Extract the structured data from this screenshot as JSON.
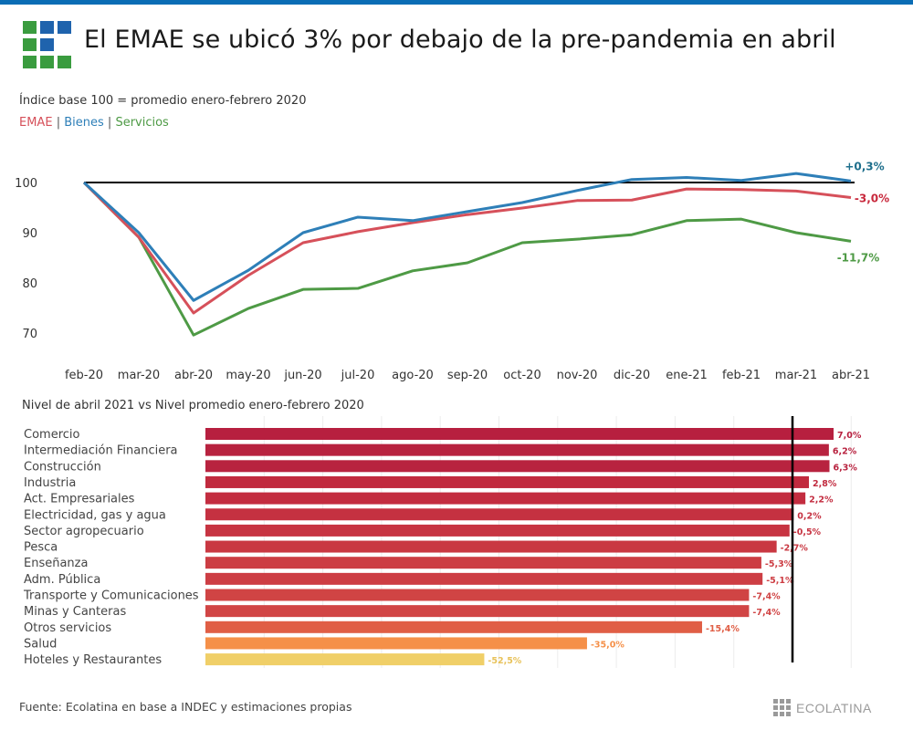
{
  "header": {
    "title": "El EMAE se ubicó 3% por debajo de la pre-pandemia en abril",
    "logo_colors": [
      "#3a9c3f",
      "#1f63ad",
      "#1f63ad",
      "#3a9c3f",
      "#1f63ad",
      null,
      "#3a9c3f",
      "#3a9c3f",
      "#3a9c3f"
    ]
  },
  "subtitle": "Índice base 100 = promedio enero-febrero 2020",
  "legend": {
    "items": [
      {
        "label": "EMAE",
        "color": "#d6505a"
      },
      {
        "label": "Bienes",
        "color": "#2e7fb8"
      },
      {
        "label": "Servicios",
        "color": "#4e9a45"
      }
    ],
    "separator": "|"
  },
  "bar_section_title": "Nivel de abril 2021 vs Nivel promedio enero-febrero 2020",
  "footer": {
    "source": "Fuente: Ecolatina en base a INDEC y estimaciones propias",
    "brand": "ECOLATINA"
  },
  "chart_data": [
    {
      "type": "line",
      "title": "El EMAE se ubicó 3% por debajo de la pre-pandemia en abril",
      "subtitle": "Índice base 100 = promedio enero-febrero 2020",
      "xlabel": "",
      "ylabel": "",
      "x": [
        "feb-20",
        "mar-20",
        "abr-20",
        "may-20",
        "jun-20",
        "jul-20",
        "ago-20",
        "sep-20",
        "oct-20",
        "nov-20",
        "dic-20",
        "ene-21",
        "feb-21",
        "mar-21",
        "abr-21"
      ],
      "yticks": [
        70,
        80,
        90,
        100
      ],
      "ylim": [
        64,
        104
      ],
      "reference_line": 100,
      "grid": false,
      "series": [
        {
          "name": "Bienes",
          "color": "#2e7fb8",
          "label_color": "#1e6f8c",
          "end_label": "+0,3%",
          "values": [
            100,
            90.0,
            76.5,
            82.5,
            90.0,
            93.1,
            92.4,
            94.2,
            96.0,
            98.4,
            100.6,
            101.0,
            100.4,
            101.8,
            100.3
          ]
        },
        {
          "name": "EMAE",
          "color": "#d6505a",
          "label_color": "#c8283c",
          "end_label": "-3,0%",
          "values": [
            100,
            89.1,
            74.0,
            81.5,
            88.0,
            90.2,
            92.0,
            93.6,
            94.9,
            96.4,
            96.5,
            98.7,
            98.6,
            98.3,
            97.0
          ]
        },
        {
          "name": "Servicios",
          "color": "#4e9a45",
          "label_color": "#4e9a45",
          "end_label": "-11,7%",
          "values": [
            100,
            89.1,
            69.6,
            74.9,
            78.7,
            78.9,
            82.4,
            84.0,
            88.0,
            88.7,
            89.6,
            92.4,
            92.7,
            90.0,
            88.3
          ]
        }
      ]
    },
    {
      "type": "bar",
      "orientation": "horizontal",
      "title": "Nivel de abril 2021 vs Nivel promedio enero-febrero 2020",
      "xlim": [
        -100,
        10
      ],
      "grid": true,
      "reference_line": 0,
      "unit": "%",
      "categories": [
        "Comercio",
        "Intermediación Financiera",
        "Construcción",
        "Industria",
        "Act. Empresariales",
        "Electricidad, gas y agua",
        "Sector agropecuario",
        "Pesca",
        "Enseñanza",
        "Adm. Pública",
        "Transporte y Comunicaciones",
        "Minas y Canteras",
        "Otros servicios",
        "Salud",
        "Hoteles y Restaurantes"
      ],
      "values": [
        7.0,
        6.2,
        6.3,
        2.8,
        2.2,
        0.2,
        -0.5,
        -2.7,
        -5.3,
        -5.1,
        -7.4,
        -7.4,
        -15.4,
        -35.0,
        -52.5
      ],
      "labels": [
        "7,0%",
        "6,2%",
        "6,3%",
        "2,8%",
        "2,2%",
        "0,2%",
        "-0,5%",
        "-2,7%",
        "-5,3%",
        "-5,1%",
        "-7,4%",
        "-7,4%",
        "-15,4%",
        "-35,0%",
        "-52,5%"
      ],
      "colors": [
        "#b71f3f",
        "#b8223f",
        "#b8233f",
        "#c12a3e",
        "#c32d40",
        "#c53141",
        "#c73442",
        "#c93842",
        "#cc3d43",
        "#cd3e44",
        "#d04444",
        "#d14545",
        "#e05e45",
        "#f59049",
        "#f0cf68"
      ]
    }
  ]
}
